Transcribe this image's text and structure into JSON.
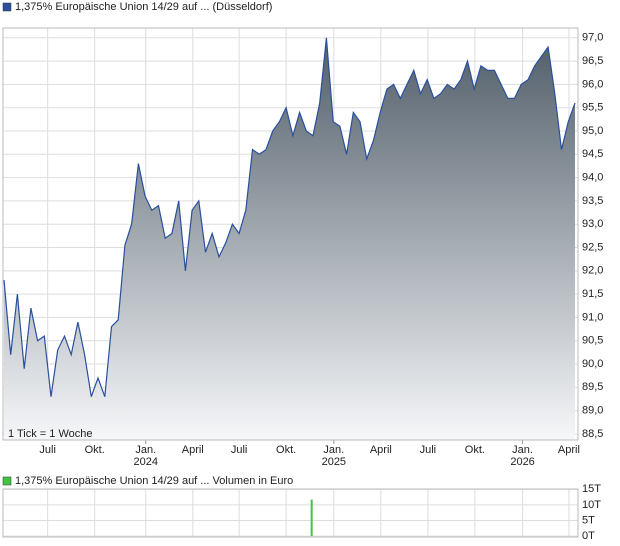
{
  "chart_data": [
    {
      "type": "area",
      "legend": "1,375% Europäische Union 14/29 auf ... (Düsseldorf)",
      "note": "1 Tick = 1 Woche",
      "color": "#2a4f9c",
      "values": [
        91.8,
        90.2,
        91.5,
        89.9,
        91.2,
        90.5,
        90.6,
        89.3,
        90.3,
        90.6,
        90.2,
        90.9,
        90.2,
        89.3,
        89.7,
        89.3,
        90.8,
        90.95,
        92.55,
        93.0,
        94.3,
        93.6,
        93.3,
        93.4,
        92.7,
        92.8,
        93.5,
        92.0,
        93.3,
        93.5,
        92.4,
        92.8,
        92.3,
        92.6,
        93.0,
        92.8,
        93.3,
        94.6,
        94.5,
        94.6,
        95.0,
        95.2,
        95.5,
        94.9,
        95.4,
        95.0,
        94.9,
        95.6,
        97.0,
        95.2,
        95.1,
        94.5,
        95.4,
        95.2,
        94.4,
        94.8,
        95.4,
        95.9,
        96.0,
        95.7,
        96.0,
        96.3,
        95.8,
        96.1,
        95.7,
        95.8,
        96.0,
        95.9,
        96.1,
        96.5,
        95.9,
        96.4,
        96.3,
        96.3,
        96.0,
        95.7,
        95.7,
        96.0,
        96.1,
        96.4,
        96.6,
        96.8,
        95.8,
        94.6,
        95.2,
        95.6
      ],
      "xlim": [
        -0.15,
        85.45
      ],
      "xticks": [
        {
          "value": 6.5,
          "label": "Juli"
        },
        {
          "value": 13.5,
          "label": "Okt."
        },
        {
          "value": 21.1,
          "label": "Jan."
        },
        {
          "value": 28.1,
          "label": "April"
        },
        {
          "value": 35.0,
          "label": "Juli"
        },
        {
          "value": 42.0,
          "label": "Okt."
        },
        {
          "value": 49.1,
          "label": "Jan."
        },
        {
          "value": 56.1,
          "label": "April"
        },
        {
          "value": 63.1,
          "label": "Juli"
        },
        {
          "value": 70.1,
          "label": "Okt."
        },
        {
          "value": 77.2,
          "label": "Jan."
        },
        {
          "value": 84.1,
          "label": "April"
        }
      ],
      "xtick_years": [
        {
          "value": 21.1,
          "label": "2024"
        },
        {
          "value": 49.1,
          "label": "2025"
        },
        {
          "value": 77.2,
          "label": "2026"
        }
      ],
      "ylim": [
        88.37,
        97.21
      ],
      "yticks": [
        {
          "value": 88.5,
          "label": "88,5"
        },
        {
          "value": 89,
          "label": "89,0"
        },
        {
          "value": 89.5,
          "label": "89,5"
        },
        {
          "value": 90,
          "label": "90,0"
        },
        {
          "value": 90.5,
          "label": "90,5"
        },
        {
          "value": 91,
          "label": "91,0"
        },
        {
          "value": 91.5,
          "label": "91,5"
        },
        {
          "value": 92,
          "label": "92,0"
        },
        {
          "value": 92.5,
          "label": "92,5"
        },
        {
          "value": 93,
          "label": "93,0"
        },
        {
          "value": 93.5,
          "label": "93,5"
        },
        {
          "value": 94,
          "label": "94,0"
        },
        {
          "value": 94.5,
          "label": "94,5"
        },
        {
          "value": 95,
          "label": "95,0"
        },
        {
          "value": 95.5,
          "label": "95,5"
        },
        {
          "value": 96,
          "label": "96,0"
        },
        {
          "value": 96.5,
          "label": "96,5"
        },
        {
          "value": 97,
          "label": "97,0"
        }
      ],
      "grid": true
    },
    {
      "type": "bar",
      "legend": "1,375% Europäische Union 14/29 auf ... Volumen in Euro",
      "color": "#44c444",
      "x": [
        45.8
      ],
      "values": [
        11.7
      ],
      "xlim": [
        -0.15,
        85.45
      ],
      "xticks": [
        6.5,
        13.5,
        21.1,
        28.1,
        35.0,
        42.0,
        49.1,
        56.1,
        63.1,
        70.1,
        77.2,
        84.1
      ],
      "ylim": [
        -0.3,
        15.1
      ],
      "yticks": [
        {
          "value": 0,
          "label": "0T"
        },
        {
          "value": 5,
          "label": "5T"
        },
        {
          "value": 10,
          "label": "10T"
        },
        {
          "value": 15,
          "label": "15T"
        }
      ],
      "grid": true
    }
  ]
}
